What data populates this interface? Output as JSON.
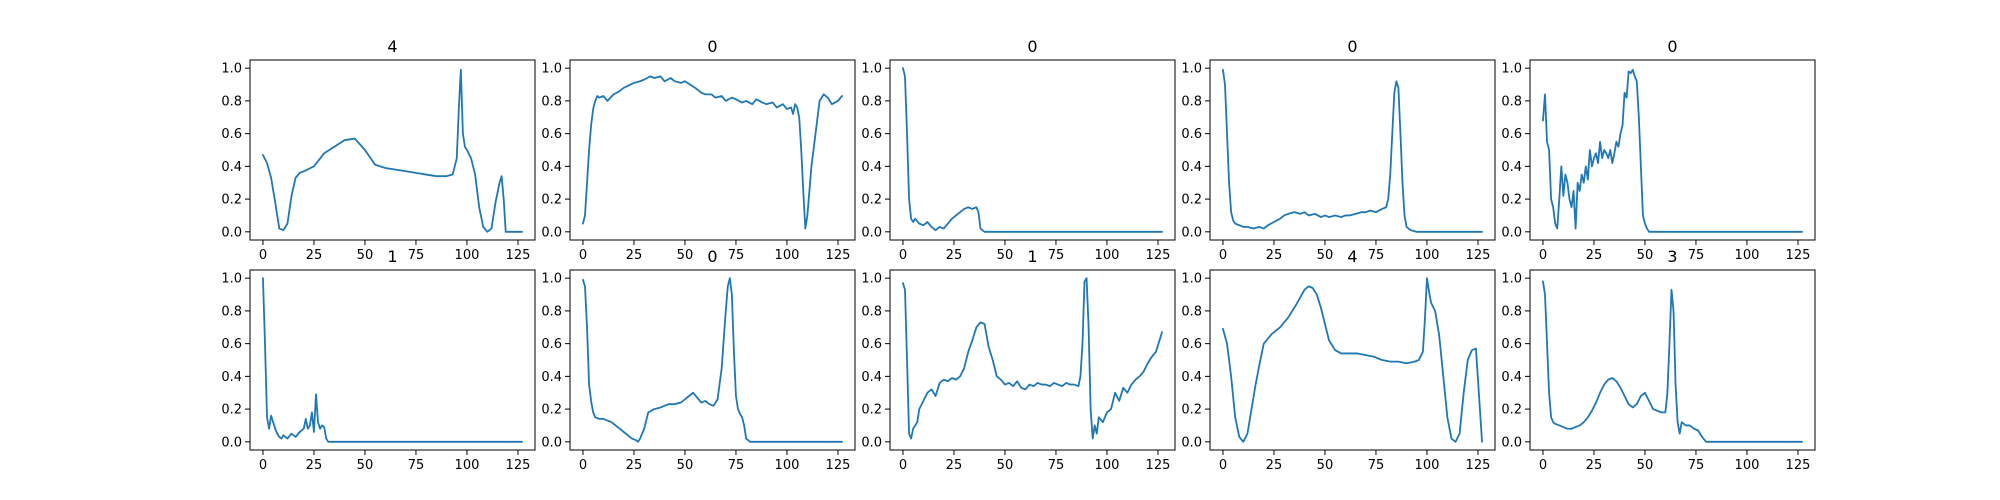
{
  "chart_data": [
    {
      "type": "line",
      "title": "4",
      "xlim": [
        -6.35,
        133.35
      ],
      "ylim": [
        -0.05,
        1.05
      ],
      "xticks": [
        0,
        25,
        50,
        75,
        100,
        125
      ],
      "yticks": [
        0.0,
        0.2,
        0.4,
        0.6,
        0.8,
        1.0
      ],
      "x": [
        0,
        2,
        4,
        6,
        8,
        10,
        12,
        14,
        16,
        18,
        20,
        25,
        30,
        35,
        40,
        45,
        50,
        55,
        60,
        65,
        70,
        75,
        80,
        85,
        90,
        93,
        95,
        96,
        97,
        98,
        99,
        100,
        102,
        104,
        106,
        108,
        110,
        112,
        114,
        116,
        117,
        118,
        119,
        120,
        121,
        122,
        124,
        127
      ],
      "series": [
        {
          "values": [
            0.47,
            0.42,
            0.33,
            0.18,
            0.02,
            0.01,
            0.05,
            0.22,
            0.33,
            0.36,
            0.37,
            0.4,
            0.48,
            0.52,
            0.56,
            0.57,
            0.5,
            0.41,
            0.39,
            0.38,
            0.37,
            0.36,
            0.35,
            0.34,
            0.34,
            0.35,
            0.45,
            0.75,
            0.99,
            0.6,
            0.52,
            0.5,
            0.45,
            0.35,
            0.15,
            0.03,
            0.0,
            0.02,
            0.18,
            0.3,
            0.34,
            0.2,
            0.0,
            0.0,
            0.0,
            0.0,
            0.0,
            0.0
          ]
        }
      ]
    },
    {
      "type": "line",
      "title": "0",
      "xlim": [
        -6.35,
        133.35
      ],
      "ylim": [
        -0.05,
        1.05
      ],
      "xticks": [
        0,
        25,
        50,
        75,
        100,
        125
      ],
      "yticks": [
        0.0,
        0.2,
        0.4,
        0.6,
        0.8,
        1.0
      ],
      "x": [
        0,
        1,
        2,
        3,
        4,
        5,
        6,
        7,
        8,
        10,
        12,
        15,
        18,
        20,
        25,
        28,
        30,
        33,
        35,
        38,
        40,
        43,
        45,
        48,
        50,
        55,
        58,
        60,
        63,
        65,
        68,
        70,
        73,
        75,
        78,
        80,
        83,
        85,
        88,
        90,
        93,
        95,
        98,
        100,
        102,
        103,
        104,
        105,
        106,
        107,
        108,
        109,
        110,
        112,
        114,
        116,
        118,
        120,
        122,
        125,
        127
      ],
      "series": [
        {
          "values": [
            0.05,
            0.1,
            0.3,
            0.5,
            0.65,
            0.75,
            0.8,
            0.83,
            0.82,
            0.83,
            0.8,
            0.84,
            0.86,
            0.88,
            0.91,
            0.92,
            0.93,
            0.95,
            0.94,
            0.95,
            0.92,
            0.94,
            0.92,
            0.91,
            0.92,
            0.88,
            0.85,
            0.84,
            0.84,
            0.82,
            0.83,
            0.8,
            0.82,
            0.81,
            0.79,
            0.8,
            0.78,
            0.81,
            0.79,
            0.78,
            0.79,
            0.76,
            0.78,
            0.75,
            0.76,
            0.72,
            0.78,
            0.76,
            0.7,
            0.5,
            0.25,
            0.02,
            0.1,
            0.4,
            0.6,
            0.8,
            0.84,
            0.82,
            0.78,
            0.8,
            0.83
          ]
        }
      ]
    },
    {
      "type": "line",
      "title": "0",
      "xlim": [
        -6.35,
        133.35
      ],
      "ylim": [
        -0.05,
        1.05
      ],
      "xticks": [
        0,
        25,
        50,
        75,
        100,
        125
      ],
      "yticks": [
        0.0,
        0.2,
        0.4,
        0.6,
        0.8,
        1.0
      ],
      "x": [
        0,
        1,
        2,
        3,
        4,
        5,
        6,
        8,
        10,
        12,
        14,
        15,
        16,
        18,
        20,
        22,
        24,
        26,
        28,
        30,
        32,
        34,
        36,
        37,
        38,
        40,
        50,
        60,
        80,
        100,
        127
      ],
      "series": [
        {
          "values": [
            1.0,
            0.95,
            0.6,
            0.2,
            0.08,
            0.06,
            0.08,
            0.05,
            0.04,
            0.06,
            0.03,
            0.02,
            0.01,
            0.03,
            0.02,
            0.05,
            0.08,
            0.1,
            0.12,
            0.14,
            0.15,
            0.14,
            0.15,
            0.12,
            0.02,
            0.0,
            0.0,
            0.0,
            0.0,
            0.0,
            0.0
          ]
        }
      ]
    },
    {
      "type": "line",
      "title": "0",
      "xlim": [
        -6.35,
        133.35
      ],
      "ylim": [
        -0.05,
        1.05
      ],
      "xticks": [
        0,
        25,
        50,
        75,
        100,
        125
      ],
      "yticks": [
        0.0,
        0.2,
        0.4,
        0.6,
        0.8,
        1.0
      ],
      "x": [
        0,
        1,
        2,
        3,
        4,
        5,
        6,
        8,
        10,
        12,
        15,
        18,
        20,
        22,
        25,
        28,
        30,
        32,
        35,
        38,
        40,
        42,
        45,
        48,
        50,
        52,
        55,
        58,
        60,
        62,
        65,
        68,
        70,
        72,
        75,
        78,
        80,
        81,
        82,
        83,
        84,
        85,
        86,
        87,
        88,
        89,
        90,
        92,
        95,
        100,
        110,
        127
      ],
      "series": [
        {
          "values": [
            0.99,
            0.9,
            0.6,
            0.3,
            0.12,
            0.07,
            0.05,
            0.04,
            0.03,
            0.03,
            0.02,
            0.03,
            0.02,
            0.04,
            0.06,
            0.08,
            0.1,
            0.11,
            0.12,
            0.11,
            0.12,
            0.1,
            0.11,
            0.09,
            0.1,
            0.09,
            0.1,
            0.09,
            0.1,
            0.1,
            0.11,
            0.12,
            0.12,
            0.13,
            0.12,
            0.14,
            0.15,
            0.2,
            0.35,
            0.6,
            0.85,
            0.92,
            0.88,
            0.6,
            0.3,
            0.1,
            0.03,
            0.01,
            0.0,
            0.0,
            0.0,
            0.0
          ]
        }
      ]
    },
    {
      "type": "line",
      "title": "0",
      "xlim": [
        -6.35,
        133.35
      ],
      "ylim": [
        -0.05,
        1.05
      ],
      "xticks": [
        0,
        25,
        50,
        75,
        100,
        125
      ],
      "yticks": [
        0.0,
        0.2,
        0.4,
        0.6,
        0.8,
        1.0
      ],
      "x": [
        0,
        1,
        2,
        3,
        4,
        5,
        6,
        7,
        8,
        9,
        10,
        11,
        12,
        13,
        14,
        15,
        16,
        17,
        18,
        19,
        20,
        21,
        22,
        23,
        24,
        25,
        26,
        27,
        28,
        29,
        30,
        31,
        32,
        33,
        34,
        35,
        36,
        37,
        38,
        39,
        40,
        41,
        42,
        43,
        44,
        45,
        46,
        47,
        48,
        49,
        50,
        51,
        52,
        53,
        54,
        55,
        60,
        127
      ],
      "series": [
        {
          "values": [
            0.68,
            0.84,
            0.55,
            0.5,
            0.2,
            0.15,
            0.05,
            0.02,
            0.2,
            0.4,
            0.22,
            0.35,
            0.3,
            0.2,
            0.15,
            0.25,
            0.02,
            0.3,
            0.25,
            0.35,
            0.3,
            0.4,
            0.32,
            0.5,
            0.4,
            0.45,
            0.48,
            0.42,
            0.55,
            0.45,
            0.5,
            0.48,
            0.45,
            0.5,
            0.42,
            0.48,
            0.55,
            0.52,
            0.6,
            0.65,
            0.85,
            0.82,
            0.98,
            0.97,
            0.99,
            0.95,
            0.92,
            0.7,
            0.4,
            0.1,
            0.05,
            0.02,
            0.0,
            0.0,
            0.0,
            0.0,
            0.0,
            0.0
          ]
        }
      ]
    },
    {
      "type": "line",
      "title": "1",
      "xlim": [
        -6.35,
        133.35
      ],
      "ylim": [
        -0.05,
        1.05
      ],
      "xticks": [
        0,
        25,
        50,
        75,
        100,
        125
      ],
      "yticks": [
        0.0,
        0.2,
        0.4,
        0.6,
        0.8,
        1.0
      ],
      "x": [
        0,
        1,
        2,
        3,
        4,
        5,
        6,
        7,
        8,
        9,
        10,
        12,
        14,
        16,
        18,
        20,
        21,
        22,
        23,
        24,
        25,
        26,
        27,
        28,
        29,
        30,
        31,
        32,
        40,
        60,
        80,
        100,
        127
      ],
      "series": [
        {
          "values": [
            1.0,
            0.6,
            0.15,
            0.08,
            0.16,
            0.12,
            0.08,
            0.05,
            0.03,
            0.02,
            0.04,
            0.02,
            0.05,
            0.03,
            0.06,
            0.08,
            0.14,
            0.08,
            0.1,
            0.18,
            0.06,
            0.29,
            0.12,
            0.08,
            0.1,
            0.09,
            0.02,
            0.0,
            0.0,
            0.0,
            0.0,
            0.0,
            0.0
          ]
        }
      ]
    },
    {
      "type": "line",
      "title": "0",
      "xlim": [
        -6.35,
        133.35
      ],
      "ylim": [
        -0.05,
        1.05
      ],
      "xticks": [
        0,
        25,
        50,
        75,
        100,
        125
      ],
      "yticks": [
        0.0,
        0.2,
        0.4,
        0.6,
        0.8,
        1.0
      ],
      "x": [
        0,
        1,
        2,
        3,
        4,
        5,
        6,
        8,
        10,
        12,
        14,
        16,
        18,
        20,
        22,
        24,
        26,
        27,
        28,
        30,
        32,
        35,
        38,
        40,
        42,
        45,
        48,
        50,
        52,
        54,
        56,
        58,
        60,
        62,
        64,
        66,
        68,
        70,
        71,
        72,
        73,
        74,
        75,
        76,
        77,
        78,
        79,
        80,
        82,
        85,
        100,
        127
      ],
      "series": [
        {
          "values": [
            0.99,
            0.95,
            0.7,
            0.35,
            0.25,
            0.18,
            0.15,
            0.14,
            0.14,
            0.13,
            0.12,
            0.1,
            0.08,
            0.06,
            0.04,
            0.02,
            0.01,
            0.0,
            0.02,
            0.08,
            0.18,
            0.2,
            0.21,
            0.22,
            0.23,
            0.23,
            0.24,
            0.26,
            0.28,
            0.3,
            0.27,
            0.24,
            0.25,
            0.23,
            0.22,
            0.26,
            0.45,
            0.8,
            0.95,
            1.0,
            0.9,
            0.55,
            0.28,
            0.2,
            0.17,
            0.15,
            0.1,
            0.02,
            0.0,
            0.0,
            0.0,
            0.0
          ]
        }
      ]
    },
    {
      "type": "line",
      "title": "1",
      "xlim": [
        -6.35,
        133.35
      ],
      "ylim": [
        -0.05,
        1.05
      ],
      "xticks": [
        0,
        25,
        50,
        75,
        100,
        125
      ],
      "yticks": [
        0.0,
        0.2,
        0.4,
        0.6,
        0.8,
        1.0
      ],
      "x": [
        0,
        1,
        2,
        3,
        4,
        5,
        6,
        7,
        8,
        10,
        12,
        14,
        16,
        18,
        20,
        22,
        24,
        26,
        28,
        30,
        32,
        34,
        36,
        38,
        40,
        42,
        44,
        46,
        48,
        50,
        52,
        54,
        56,
        58,
        60,
        62,
        64,
        66,
        68,
        70,
        72,
        74,
        76,
        78,
        80,
        82,
        84,
        86,
        87,
        88,
        89,
        90,
        91,
        92,
        93,
        94,
        95,
        96,
        98,
        100,
        102,
        104,
        106,
        108,
        110,
        112,
        114,
        116,
        118,
        120,
        122,
        124,
        126,
        127
      ],
      "series": [
        {
          "values": [
            0.97,
            0.93,
            0.5,
            0.05,
            0.02,
            0.08,
            0.1,
            0.12,
            0.2,
            0.25,
            0.3,
            0.32,
            0.28,
            0.36,
            0.38,
            0.37,
            0.39,
            0.38,
            0.4,
            0.45,
            0.55,
            0.62,
            0.7,
            0.73,
            0.72,
            0.58,
            0.5,
            0.4,
            0.38,
            0.35,
            0.36,
            0.34,
            0.37,
            0.33,
            0.32,
            0.35,
            0.34,
            0.36,
            0.35,
            0.35,
            0.34,
            0.36,
            0.35,
            0.34,
            0.36,
            0.35,
            0.35,
            0.34,
            0.4,
            0.6,
            0.98,
            1.0,
            0.7,
            0.2,
            0.02,
            0.1,
            0.05,
            0.15,
            0.12,
            0.18,
            0.2,
            0.3,
            0.25,
            0.33,
            0.3,
            0.35,
            0.38,
            0.4,
            0.43,
            0.48,
            0.52,
            0.55,
            0.63,
            0.67
          ]
        }
      ]
    },
    {
      "type": "line",
      "title": "4",
      "xlim": [
        -6.35,
        133.35
      ],
      "ylim": [
        -0.05,
        1.05
      ],
      "xticks": [
        0,
        25,
        50,
        75,
        100,
        125
      ],
      "yticks": [
        0.0,
        0.2,
        0.4,
        0.6,
        0.8,
        1.0
      ],
      "x": [
        0,
        2,
        4,
        6,
        8,
        10,
        12,
        14,
        16,
        18,
        20,
        24,
        28,
        32,
        36,
        40,
        42,
        44,
        46,
        48,
        50,
        52,
        55,
        58,
        62,
        66,
        70,
        74,
        78,
        82,
        86,
        90,
        94,
        96,
        98,
        99,
        100,
        101,
        102,
        104,
        106,
        108,
        110,
        112,
        114,
        116,
        118,
        120,
        122,
        124,
        127
      ],
      "series": [
        {
          "values": [
            0.69,
            0.6,
            0.4,
            0.15,
            0.03,
            0.0,
            0.05,
            0.2,
            0.35,
            0.48,
            0.6,
            0.66,
            0.7,
            0.76,
            0.84,
            0.93,
            0.95,
            0.94,
            0.9,
            0.82,
            0.72,
            0.62,
            0.56,
            0.54,
            0.54,
            0.54,
            0.53,
            0.52,
            0.5,
            0.49,
            0.49,
            0.48,
            0.49,
            0.5,
            0.55,
            0.75,
            1.0,
            0.92,
            0.85,
            0.8,
            0.65,
            0.4,
            0.15,
            0.02,
            0.0,
            0.05,
            0.3,
            0.5,
            0.56,
            0.57,
            0.0
          ]
        }
      ]
    },
    {
      "type": "line",
      "title": "3",
      "xlim": [
        -6.35,
        133.35
      ],
      "ylim": [
        -0.05,
        1.05
      ],
      "xticks": [
        0,
        25,
        50,
        75,
        100,
        125
      ],
      "yticks": [
        0.0,
        0.2,
        0.4,
        0.6,
        0.8,
        1.0
      ],
      "x": [
        0,
        1,
        2,
        3,
        4,
        5,
        6,
        8,
        10,
        12,
        14,
        16,
        18,
        20,
        22,
        24,
        26,
        28,
        30,
        32,
        34,
        36,
        38,
        40,
        42,
        44,
        46,
        48,
        50,
        52,
        54,
        56,
        58,
        60,
        61,
        62,
        63,
        64,
        65,
        66,
        67,
        68,
        70,
        72,
        74,
        76,
        78,
        80,
        90,
        100,
        127
      ],
      "series": [
        {
          "values": [
            0.98,
            0.9,
            0.6,
            0.3,
            0.15,
            0.12,
            0.11,
            0.1,
            0.09,
            0.08,
            0.08,
            0.09,
            0.1,
            0.12,
            0.15,
            0.19,
            0.24,
            0.3,
            0.35,
            0.38,
            0.39,
            0.37,
            0.33,
            0.28,
            0.23,
            0.21,
            0.23,
            0.28,
            0.3,
            0.25,
            0.2,
            0.19,
            0.18,
            0.18,
            0.3,
            0.6,
            0.93,
            0.8,
            0.35,
            0.12,
            0.05,
            0.12,
            0.1,
            0.1,
            0.08,
            0.07,
            0.03,
            0.0,
            0.0,
            0.0,
            0.0
          ]
        }
      ]
    }
  ],
  "style": {
    "line_color": "#1f77b4"
  }
}
